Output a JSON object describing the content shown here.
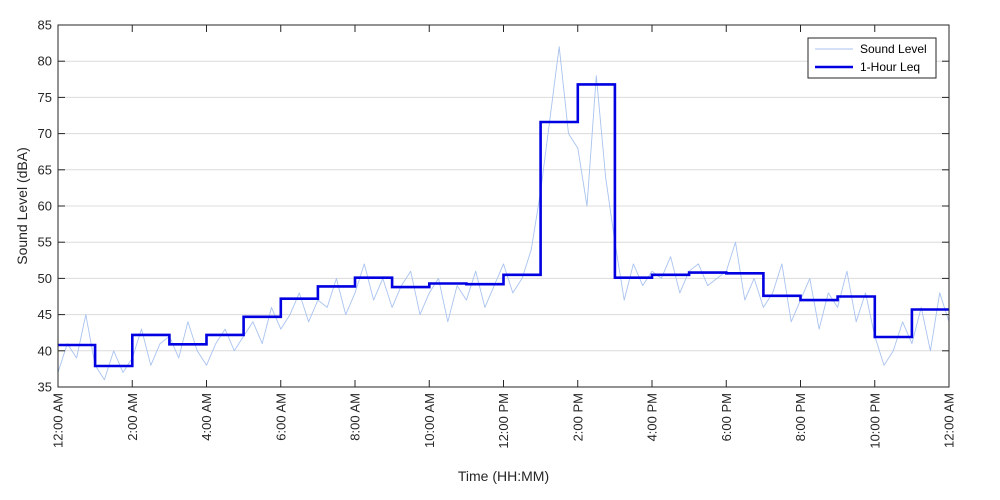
{
  "chart_data": {
    "type": "line",
    "title": "",
    "xlabel": "Time (HH:MM)",
    "ylabel": "Sound Level (dBA)",
    "xlim_hours": [
      0,
      24
    ],
    "ylim": [
      35,
      85
    ],
    "yticks": [
      35,
      40,
      45,
      50,
      55,
      60,
      65,
      70,
      75,
      80,
      85
    ],
    "xtick_hours": [
      0,
      2,
      4,
      6,
      8,
      10,
      12,
      14,
      16,
      18,
      20,
      22,
      24
    ],
    "xtick_labels": [
      "12:00 AM",
      "2:00 AM",
      "4:00 AM",
      "6:00 AM",
      "8:00 AM",
      "10:00 AM",
      "12:00 PM",
      "2:00 PM",
      "4:00 PM",
      "6:00 PM",
      "8:00 PM",
      "10:00 PM",
      "12:00 AM"
    ],
    "grid": "horizontal",
    "legend_position": "top-right",
    "series": [
      {
        "name": "Sound Level",
        "color": "#a9c3f0",
        "style": "thin-line",
        "x_hours": [
          0,
          0.25,
          0.5,
          0.75,
          1,
          1.25,
          1.5,
          1.75,
          2,
          2.25,
          2.5,
          2.75,
          3,
          3.25,
          3.5,
          3.75,
          4,
          4.25,
          4.5,
          4.75,
          5,
          5.25,
          5.5,
          5.75,
          6,
          6.25,
          6.5,
          6.75,
          7,
          7.25,
          7.5,
          7.75,
          8,
          8.25,
          8.5,
          8.75,
          9,
          9.25,
          9.5,
          9.75,
          10,
          10.25,
          10.5,
          10.75,
          11,
          11.25,
          11.5,
          11.75,
          12,
          12.25,
          12.5,
          12.75,
          13,
          13.25,
          13.5,
          13.75,
          14,
          14.25,
          14.5,
          14.75,
          15,
          15.25,
          15.5,
          15.75,
          16,
          16.25,
          16.5,
          16.75,
          17,
          17.25,
          17.5,
          17.75,
          18,
          18.25,
          18.5,
          18.75,
          19,
          19.25,
          19.5,
          19.75,
          20,
          20.25,
          20.5,
          20.75,
          21,
          21.25,
          21.5,
          21.75,
          22,
          22.25,
          22.5,
          22.75,
          23,
          23.25,
          23.5,
          23.75,
          24
        ],
        "values": [
          37,
          41,
          39,
          45,
          38,
          36,
          40,
          37,
          39,
          43,
          38,
          41,
          42,
          39,
          44,
          40,
          38,
          41,
          43,
          40,
          42,
          44,
          41,
          46,
          43,
          45,
          48,
          44,
          47,
          46,
          50,
          45,
          48,
          52,
          47,
          50,
          46,
          49,
          51,
          45,
          48,
          50,
          44,
          49,
          47,
          51,
          46,
          49,
          52,
          48,
          50,
          54,
          62,
          72,
          82,
          70,
          68,
          60,
          78,
          64,
          55,
          47,
          52,
          49,
          51,
          50,
          53,
          48,
          51,
          52,
          49,
          50,
          51,
          55,
          47,
          50,
          46,
          48,
          52,
          44,
          47,
          50,
          43,
          48,
          46,
          51,
          44,
          48,
          42,
          38,
          40,
          44,
          41,
          46,
          40,
          48,
          44
        ],
        "annotation": "values approximate, sampled from a dense noisy trace"
      },
      {
        "name": "1-Hour Leq",
        "color": "#0000e0",
        "style": "step",
        "x_hours": [
          0,
          1,
          2,
          3,
          4,
          5,
          6,
          7,
          8,
          9,
          10,
          11,
          12,
          13,
          14,
          15,
          16,
          17,
          18,
          19,
          20,
          21,
          22,
          23
        ],
        "values": [
          40.8,
          37.9,
          42.2,
          40.9,
          42.2,
          44.7,
          47.2,
          48.9,
          50.1,
          48.8,
          49.3,
          49.2,
          50.5,
          71.6,
          76.8,
          50.1,
          50.5,
          50.8,
          50.7,
          47.6,
          47.0,
          47.5,
          41.9,
          45.7
        ]
      }
    ]
  }
}
